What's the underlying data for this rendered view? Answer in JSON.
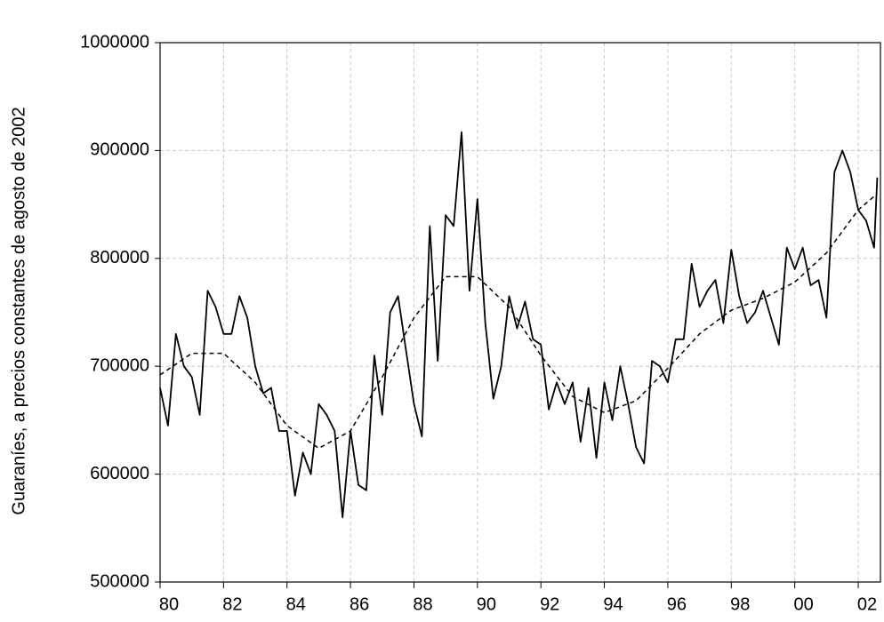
{
  "chart_data": {
    "type": "line",
    "y_label": "Guaraníes,  a precios constantes de agosto de 2002",
    "xlim": [
      1980,
      2002.7
    ],
    "ylim": [
      500000,
      1000000
    ],
    "xticks": [
      {
        "value": 1980,
        "label": "80"
      },
      {
        "value": 1982,
        "label": "82"
      },
      {
        "value": 1984,
        "label": "84"
      },
      {
        "value": 1986,
        "label": "86"
      },
      {
        "value": 1988,
        "label": "88"
      },
      {
        "value": 1990,
        "label": "90"
      },
      {
        "value": 1992,
        "label": "92"
      },
      {
        "value": 1994,
        "label": "94"
      },
      {
        "value": 1996,
        "label": "96"
      },
      {
        "value": 1998,
        "label": "98"
      },
      {
        "value": 2000,
        "label": "00"
      },
      {
        "value": 2002,
        "label": "02"
      }
    ],
    "yticks": [
      500000,
      600000,
      700000,
      800000,
      900000,
      1000000
    ],
    "grid": true,
    "series": [
      {
        "color": "#000000",
        "dash": "none",
        "x": [
          1980,
          1980.25,
          1980.5,
          1980.75,
          1981,
          1981.25,
          1981.5,
          1981.75,
          1982,
          1982.25,
          1982.5,
          1982.75,
          1983,
          1983.25,
          1983.5,
          1983.75,
          1984,
          1984.25,
          1984.5,
          1984.75,
          1985,
          1985.25,
          1985.5,
          1985.75,
          1986,
          1986.25,
          1986.5,
          1986.75,
          1987,
          1987.25,
          1987.5,
          1987.75,
          1988,
          1988.25,
          1988.5,
          1988.75,
          1989,
          1989.25,
          1989.5,
          1989.75,
          1990,
          1990.25,
          1990.5,
          1990.75,
          1991,
          1991.25,
          1991.5,
          1991.75,
          1992,
          1992.25,
          1992.5,
          1992.75,
          1993,
          1993.25,
          1993.5,
          1993.75,
          1994,
          1994.25,
          1994.5,
          1994.75,
          1995,
          1995.25,
          1995.5,
          1995.75,
          1996,
          1996.25,
          1996.5,
          1996.75,
          1997,
          1997.25,
          1997.5,
          1997.75,
          1998,
          1998.25,
          1998.5,
          1998.75,
          1999,
          1999.25,
          1999.5,
          1999.75,
          2000,
          2000.25,
          2000.5,
          2000.75,
          2001,
          2001.25,
          2001.5,
          2001.75,
          2002,
          2002.25,
          2002.5,
          2002.6
        ],
        "values": [
          680000,
          645000,
          730000,
          700000,
          690000,
          655000,
          770000,
          755000,
          730000,
          730000,
          765000,
          745000,
          700000,
          675000,
          680000,
          640000,
          640000,
          580000,
          620000,
          600000,
          665000,
          655000,
          640000,
          560000,
          640000,
          590000,
          585000,
          710000,
          655000,
          750000,
          765000,
          715000,
          665000,
          635000,
          830000,
          705000,
          840000,
          830000,
          917000,
          770000,
          855000,
          740000,
          670000,
          700000,
          765000,
          735000,
          760000,
          725000,
          720000,
          660000,
          685000,
          665000,
          685000,
          630000,
          680000,
          615000,
          685000,
          650000,
          700000,
          665000,
          625000,
          610000,
          705000,
          700000,
          685000,
          725000,
          725000,
          795000,
          755000,
          770000,
          780000,
          740000,
          808000,
          765000,
          740000,
          750000,
          770000,
          745000,
          720000,
          810000,
          790000,
          810000,
          775000,
          780000,
          745000,
          880000,
          900000,
          880000,
          845000,
          835000,
          810000,
          875000
        ]
      },
      {
        "color": "#000000",
        "dash": "5,4",
        "x": [
          1980,
          1981,
          1982,
          1983,
          1984,
          1985,
          1986,
          1987,
          1988,
          1989,
          1990,
          1991,
          1992,
          1993,
          1994,
          1995,
          1996,
          1997,
          1998,
          1999,
          2000,
          2001,
          2002,
          2002.6
        ],
        "values": [
          692000,
          712000,
          712000,
          685000,
          645000,
          624000,
          640000,
          690000,
          745000,
          783000,
          783000,
          755000,
          710000,
          672000,
          657000,
          668000,
          698000,
          730000,
          752000,
          763000,
          778000,
          805000,
          845000,
          860000
        ]
      }
    ]
  }
}
